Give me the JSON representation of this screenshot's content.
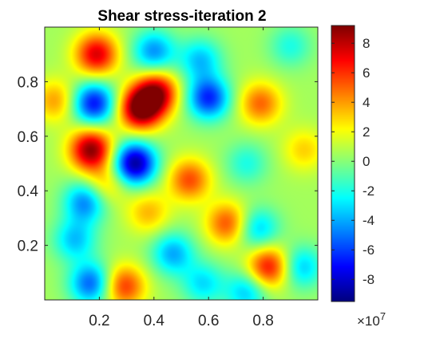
{
  "chart_data": {
    "type": "heatmap",
    "title": "Shear stress-iteration 2",
    "xlabel": "",
    "ylabel": "",
    "xlim": [
      0,
      1
    ],
    "ylim": [
      0,
      1
    ],
    "x_ticks": [
      "0.2",
      "0.4",
      "0.6",
      "0.8"
    ],
    "y_ticks": [
      "0.2",
      "0.4",
      "0.6",
      "0.8"
    ],
    "colormap": "jet",
    "clim": [
      -9.5,
      9.2
    ],
    "colorbar": {
      "ticks": [
        "8",
        "6",
        "4",
        "2",
        "0",
        "-2",
        "-4",
        "-6",
        "-8"
      ],
      "multiplier_base": "×10",
      "multiplier_exp": "7"
    },
    "background_value": 0.5,
    "blobs": [
      {
        "x": 0.35,
        "y": 0.7,
        "value": 9.0
      },
      {
        "x": 0.41,
        "y": 0.76,
        "value": 7.5
      },
      {
        "x": 0.17,
        "y": 0.55,
        "value": 8.5
      },
      {
        "x": 0.19,
        "y": 0.9,
        "value": 7.0
      },
      {
        "x": 0.33,
        "y": 0.5,
        "value": -9.5
      },
      {
        "x": 0.18,
        "y": 0.72,
        "value": -7.5
      },
      {
        "x": 0.4,
        "y": 0.91,
        "value": -5.0
      },
      {
        "x": 0.6,
        "y": 0.74,
        "value": -7.0
      },
      {
        "x": 0.57,
        "y": 0.88,
        "value": -4.0
      },
      {
        "x": 0.15,
        "y": 0.36,
        "value": -5.5
      },
      {
        "x": 0.11,
        "y": 0.22,
        "value": -4.0
      },
      {
        "x": 0.17,
        "y": 0.06,
        "value": -6.0
      },
      {
        "x": 0.47,
        "y": 0.17,
        "value": -4.5
      },
      {
        "x": 0.58,
        "y": 0.06,
        "value": -3.5
      },
      {
        "x": 0.78,
        "y": 0.26,
        "value": -4.0
      },
      {
        "x": 0.94,
        "y": 0.12,
        "value": -4.0
      },
      {
        "x": 0.74,
        "y": 0.03,
        "value": -4.0
      },
      {
        "x": 0.74,
        "y": 0.5,
        "value": -2.5
      },
      {
        "x": 0.9,
        "y": 0.93,
        "value": -2.5
      },
      {
        "x": 0.53,
        "y": 0.44,
        "value": 5.0
      },
      {
        "x": 0.67,
        "y": 0.28,
        "value": 5.0
      },
      {
        "x": 0.82,
        "y": 0.12,
        "value": 6.5
      },
      {
        "x": 0.79,
        "y": 0.72,
        "value": 4.5
      },
      {
        "x": 0.29,
        "y": 0.05,
        "value": 5.5
      },
      {
        "x": 0.04,
        "y": 0.73,
        "value": 3.5
      },
      {
        "x": 0.22,
        "y": 0.42,
        "value": 3.0
      },
      {
        "x": 0.38,
        "y": 0.32,
        "value": 3.0
      },
      {
        "x": 0.95,
        "y": 0.55,
        "value": 2.5
      }
    ]
  }
}
